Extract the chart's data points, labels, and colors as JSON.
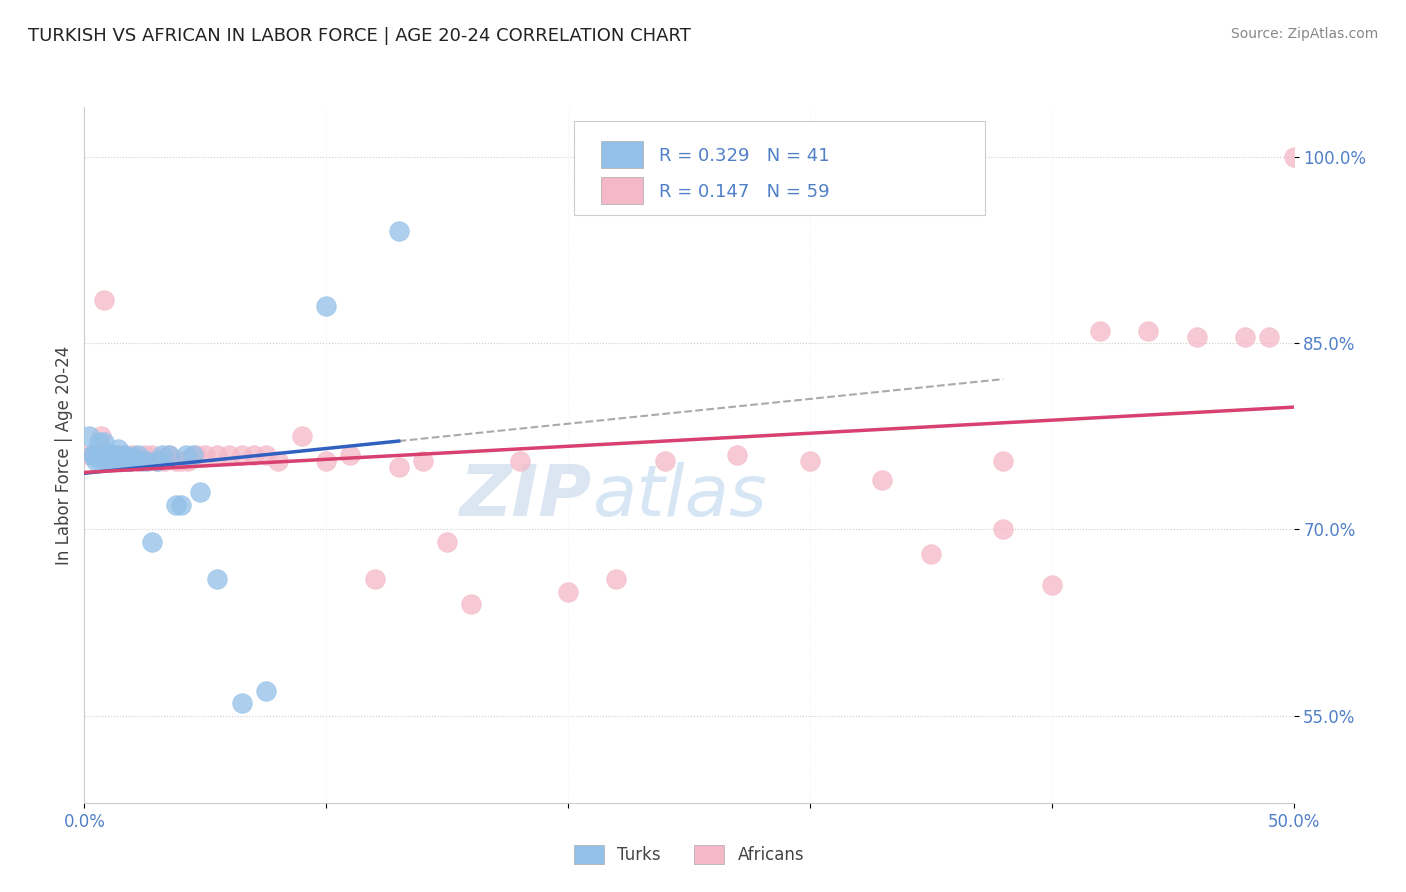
{
  "title": "TURKISH VS AFRICAN IN LABOR FORCE | AGE 20-24 CORRELATION CHART",
  "source": "Source: ZipAtlas.com",
  "ylabel": "In Labor Force | Age 20-24",
  "x_min": 0.0,
  "x_max": 0.5,
  "y_min": 0.48,
  "y_max": 1.04,
  "y_ticks": [
    0.55,
    0.7,
    0.85,
    1.0
  ],
  "y_tick_labels": [
    "55.0%",
    "70.0%",
    "85.0%",
    "100.0%"
  ],
  "x_ticks": [
    0.0,
    0.1,
    0.2,
    0.3,
    0.4,
    0.5
  ],
  "x_tick_labels": [
    "0.0%",
    "",
    "",
    "",
    "",
    "50.0%"
  ],
  "R_turks": 0.329,
  "N_turks": 41,
  "R_africans": 0.147,
  "N_africans": 59,
  "color_turks": "#92C0E8",
  "color_africans": "#F4B8C8",
  "trend_color_turks": "#3060C0",
  "trend_color_africans": "#D84070",
  "turks_x": [
    0.002,
    0.003,
    0.004,
    0.005,
    0.006,
    0.006,
    0.007,
    0.007,
    0.008,
    0.009,
    0.01,
    0.01,
    0.011,
    0.012,
    0.012,
    0.013,
    0.013,
    0.014,
    0.015,
    0.016,
    0.017,
    0.018,
    0.019,
    0.02,
    0.022,
    0.024,
    0.026,
    0.028,
    0.03,
    0.032,
    0.035,
    0.038,
    0.04,
    0.042,
    0.045,
    0.048,
    0.055,
    0.065,
    0.075,
    0.1,
    0.13
  ],
  "turks_y": [
    0.775,
    0.76,
    0.76,
    0.755,
    0.76,
    0.77,
    0.76,
    0.755,
    0.77,
    0.755,
    0.76,
    0.76,
    0.76,
    0.755,
    0.758,
    0.76,
    0.758,
    0.765,
    0.755,
    0.758,
    0.76,
    0.755,
    0.755,
    0.758,
    0.76,
    0.755,
    0.755,
    0.69,
    0.755,
    0.76,
    0.76,
    0.72,
    0.72,
    0.76,
    0.76,
    0.73,
    0.66,
    0.56,
    0.57,
    0.88,
    0.94
  ],
  "africans_x": [
    0.002,
    0.004,
    0.006,
    0.007,
    0.008,
    0.009,
    0.01,
    0.011,
    0.012,
    0.013,
    0.014,
    0.015,
    0.016,
    0.017,
    0.018,
    0.019,
    0.02,
    0.022,
    0.025,
    0.028,
    0.03,
    0.033,
    0.035,
    0.038,
    0.04,
    0.043,
    0.046,
    0.05,
    0.055,
    0.06,
    0.065,
    0.07,
    0.075,
    0.08,
    0.09,
    0.1,
    0.11,
    0.12,
    0.13,
    0.14,
    0.16,
    0.18,
    0.2,
    0.22,
    0.24,
    0.27,
    0.3,
    0.33,
    0.35,
    0.38,
    0.4,
    0.42,
    0.44,
    0.46,
    0.48,
    0.49,
    0.5,
    0.38,
    0.15
  ],
  "africans_y": [
    0.76,
    0.76,
    0.76,
    0.775,
    0.885,
    0.755,
    0.76,
    0.76,
    0.755,
    0.76,
    0.76,
    0.755,
    0.76,
    0.76,
    0.755,
    0.755,
    0.76,
    0.755,
    0.76,
    0.76,
    0.755,
    0.755,
    0.76,
    0.755,
    0.755,
    0.755,
    0.76,
    0.76,
    0.76,
    0.76,
    0.76,
    0.76,
    0.76,
    0.755,
    0.775,
    0.755,
    0.76,
    0.66,
    0.75,
    0.755,
    0.64,
    0.755,
    0.65,
    0.66,
    0.755,
    0.76,
    0.755,
    0.74,
    0.68,
    0.7,
    0.655,
    0.86,
    0.86,
    0.855,
    0.855,
    0.855,
    1.0,
    0.755,
    0.69
  ],
  "watermark_zip": "ZIP",
  "watermark_atlas": "atlas",
  "background_color": "#FFFFFF",
  "grid_color": "#CCCCCC",
  "title_fontsize": 13,
  "tick_label_color": "#5080C8",
  "ylabel_color": "#444444",
  "source_color": "#888888",
  "legend_box_color": "#5080C8",
  "legend_entry_color_R": "#5080C8"
}
